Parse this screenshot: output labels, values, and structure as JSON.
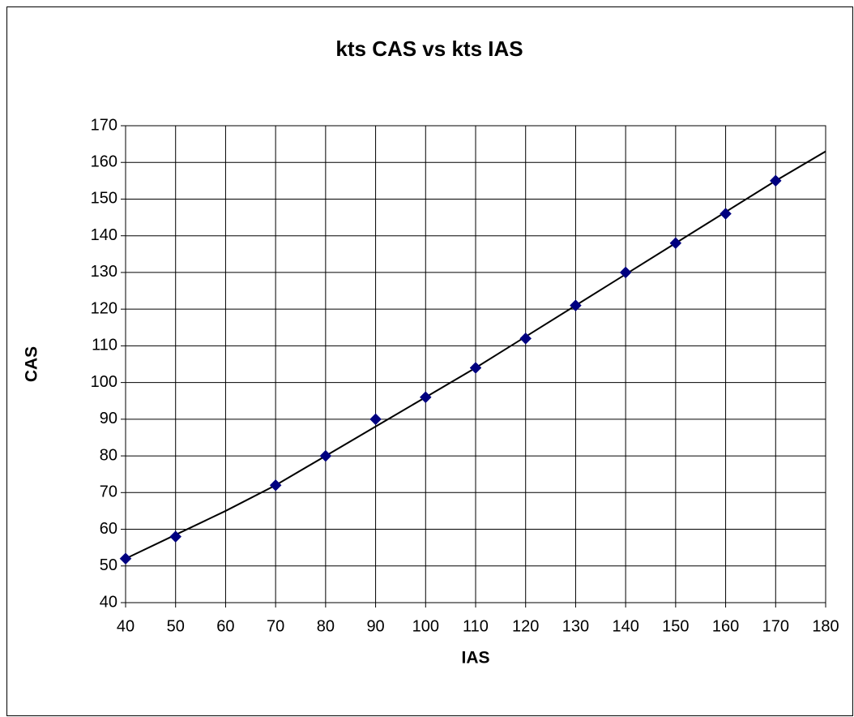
{
  "chart_data": {
    "type": "scatter",
    "title": "kts CAS vs kts IAS",
    "x_label": "IAS",
    "y_label": "CAS",
    "x": [
      40,
      50,
      70,
      80,
      90,
      100,
      110,
      120,
      130,
      140,
      150,
      160,
      170
    ],
    "values": [
      52,
      58,
      72,
      80,
      90,
      96,
      104,
      112,
      121,
      130,
      138,
      146,
      155
    ],
    "color": "#000080",
    "trendline": {
      "x": [
        40,
        50,
        60,
        70,
        80,
        90,
        100,
        110,
        120,
        130,
        140,
        150,
        160,
        170,
        180
      ],
      "values": [
        52,
        58.5,
        65,
        72,
        80,
        88,
        96,
        104,
        112.5,
        121,
        129.5,
        138,
        146.5,
        155,
        163
      ],
      "color": "#000000"
    },
    "xlim": [
      40,
      180
    ],
    "ylim": [
      40,
      170
    ],
    "xticks": [
      40,
      50,
      60,
      70,
      80,
      90,
      100,
      110,
      120,
      130,
      140,
      150,
      160,
      170,
      180
    ],
    "yticks": [
      40,
      50,
      60,
      70,
      80,
      90,
      100,
      110,
      120,
      130,
      140,
      150,
      160,
      170
    ],
    "grid": true
  }
}
